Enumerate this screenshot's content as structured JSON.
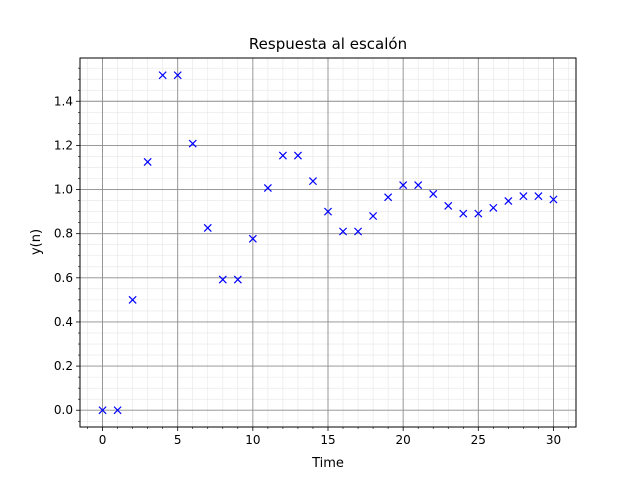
{
  "chart_data": {
    "type": "scatter",
    "title": "Respuesta al escalón",
    "xlabel": "Time",
    "ylabel": "y(n)",
    "xlim": [
      -1.5,
      31.5
    ],
    "ylim": [
      -0.076,
      1.596
    ],
    "x_ticks": [
      0,
      5,
      10,
      15,
      20,
      25,
      30
    ],
    "x_tick_labels": [
      "0",
      "5",
      "10",
      "15",
      "20",
      "25",
      "30"
    ],
    "y_ticks": [
      0.0,
      0.2,
      0.4,
      0.6,
      0.8,
      1.0,
      1.2,
      1.4
    ],
    "y_tick_labels": [
      "0.0",
      "0.2",
      "0.4",
      "0.6",
      "0.8",
      "1.0",
      "1.2",
      "1.4"
    ],
    "grid": {
      "major": true,
      "minor": true
    },
    "marker": "x",
    "series": [
      {
        "color": "#0000ff",
        "x": [
          0,
          1,
          2,
          3,
          4,
          5,
          6,
          7,
          8,
          9,
          10,
          11,
          12,
          13,
          14,
          15,
          16,
          17,
          18,
          19,
          20,
          21,
          22,
          23,
          24,
          25,
          26,
          27,
          28,
          29,
          30
        ],
        "y": [
          0.0,
          0.0,
          0.5,
          1.125,
          1.518,
          1.518,
          1.208,
          0.826,
          0.592,
          0.592,
          0.777,
          1.007,
          1.154,
          1.154,
          1.038,
          0.9,
          0.81,
          0.81,
          0.88,
          0.965,
          1.02,
          1.02,
          0.98,
          0.926,
          0.891,
          0.891,
          0.917,
          0.948,
          0.97,
          0.97,
          0.955
        ]
      }
    ]
  }
}
